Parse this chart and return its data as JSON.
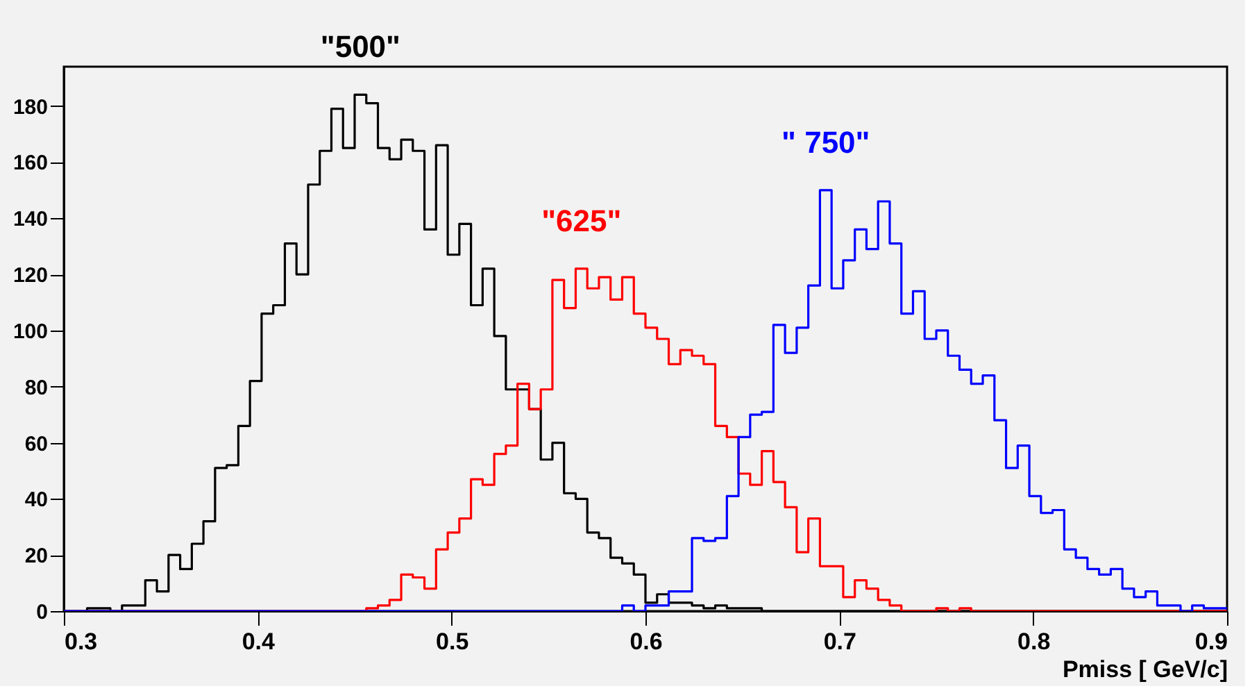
{
  "chart_data": {
    "type": "histogram",
    "xlabel": "Pmiss [ GeV/c]",
    "bins": [
      0.3,
      0.306,
      0.312,
      0.318,
      0.324,
      0.33,
      0.336,
      0.342,
      0.348,
      0.354,
      0.36,
      0.366,
      0.372,
      0.378,
      0.384,
      0.39,
      0.396,
      0.402,
      0.408,
      0.414,
      0.42,
      0.426,
      0.432,
      0.438,
      0.444,
      0.45,
      0.456,
      0.462,
      0.468,
      0.474,
      0.48,
      0.486,
      0.492,
      0.498,
      0.504,
      0.51,
      0.516,
      0.522,
      0.528,
      0.534,
      0.54,
      0.546,
      0.552,
      0.558,
      0.564,
      0.57,
      0.576,
      0.582,
      0.588,
      0.594,
      0.6,
      0.606,
      0.612,
      0.618,
      0.624,
      0.63,
      0.636,
      0.642,
      0.648,
      0.654,
      0.66,
      0.666,
      0.672,
      0.678,
      0.684,
      0.69,
      0.696,
      0.702,
      0.708,
      0.714,
      0.72,
      0.726,
      0.732,
      0.738,
      0.744,
      0.75,
      0.756,
      0.762,
      0.768,
      0.774,
      0.78,
      0.786,
      0.792,
      0.798,
      0.804,
      0.81,
      0.816,
      0.822,
      0.828,
      0.834,
      0.84,
      0.846,
      0.852,
      0.858,
      0.864,
      0.87,
      0.876,
      0.882,
      0.888,
      0.894,
      0.9
    ],
    "series": [
      {
        "name": "\"500\"",
        "color": "#000000",
        "values": [
          0,
          0,
          1,
          1,
          0,
          2,
          2,
          11,
          7,
          20,
          15,
          24,
          32,
          51,
          52,
          66,
          82,
          106,
          109,
          131,
          120,
          152,
          164,
          179,
          165,
          184,
          181,
          165,
          161,
          168,
          164,
          136,
          166,
          127,
          138,
          109,
          122,
          98,
          79,
          79,
          72,
          54,
          60,
          42,
          40,
          28,
          26,
          19,
          17,
          13,
          3,
          6,
          3,
          3,
          2,
          1,
          2,
          1,
          1,
          1,
          0,
          0,
          0,
          0,
          0,
          0,
          0,
          0,
          0,
          0,
          0,
          0,
          0,
          0,
          0,
          0,
          0,
          0,
          0,
          0,
          0,
          0,
          0,
          0,
          0,
          0,
          0,
          0,
          0,
          0,
          0,
          0,
          0,
          0,
          0,
          0,
          0,
          0,
          0,
          0
        ]
      },
      {
        "name": "\"625\"",
        "color": "#ff0000",
        "values": [
          0,
          0,
          0,
          0,
          0,
          0,
          0,
          0,
          0,
          0,
          0,
          0,
          0,
          0,
          0,
          0,
          0,
          0,
          0,
          0,
          0,
          0,
          0,
          0,
          0,
          0,
          1,
          2,
          4,
          13,
          12,
          8,
          22,
          28,
          33,
          47,
          45,
          56,
          59,
          81,
          72,
          79,
          118,
          108,
          122,
          115,
          119,
          111,
          119,
          106,
          101,
          97,
          88,
          93,
          91,
          88,
          66,
          62,
          49,
          45,
          57,
          46,
          37,
          21,
          33,
          16,
          16,
          5,
          11,
          8,
          4,
          2,
          0,
          0,
          0,
          1,
          0,
          1,
          0,
          0,
          0,
          0,
          0,
          0,
          0,
          0,
          0,
          0,
          0,
          0,
          0,
          0,
          0,
          0,
          0,
          0,
          0,
          0,
          0,
          0
        ]
      },
      {
        "name": "\" 750\"",
        "color": "#0000ff",
        "values": [
          0,
          0,
          0,
          0,
          0,
          0,
          0,
          0,
          0,
          0,
          0,
          0,
          0,
          0,
          0,
          0,
          0,
          0,
          0,
          0,
          0,
          0,
          0,
          0,
          0,
          0,
          0,
          0,
          0,
          0,
          0,
          0,
          0,
          0,
          0,
          0,
          0,
          0,
          0,
          0,
          0,
          0,
          0,
          0,
          0,
          0,
          0,
          0,
          2,
          0,
          2,
          2,
          7,
          7,
          26,
          25,
          26,
          41,
          62,
          70,
          71,
          102,
          92,
          101,
          116,
          150,
          115,
          125,
          136,
          129,
          146,
          131,
          106,
          114,
          97,
          100,
          91,
          86,
          81,
          84,
          68,
          51,
          59,
          41,
          35,
          36,
          22,
          19,
          15,
          13,
          15,
          8,
          5,
          7,
          2,
          2,
          0,
          2,
          1,
          1
        ]
      }
    ],
    "xlim": [
      0.3,
      0.9
    ],
    "xticks": [
      0.3,
      0.4,
      0.5,
      0.6,
      0.7,
      0.8,
      0.9
    ],
    "ylim": [
      0,
      194
    ],
    "yticks": [
      0,
      20,
      40,
      60,
      80,
      100,
      120,
      140,
      160,
      180
    ],
    "grid": false,
    "legend": false
  }
}
